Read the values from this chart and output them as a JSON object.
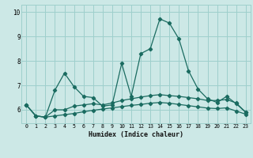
{
  "xlabel": "Humidex (Indice chaleur)",
  "ylabel": "",
  "background_color": "#cce8e6",
  "grid_color": "#9ecfcc",
  "line_color": "#1a6b60",
  "xmin": -0.5,
  "xmax": 23.5,
  "ymin": 5.45,
  "ymax": 10.3,
  "yticks": [
    6,
    7,
    8,
    9,
    10
  ],
  "xticks": [
    0,
    1,
    2,
    3,
    4,
    5,
    6,
    7,
    8,
    9,
    10,
    11,
    12,
    13,
    14,
    15,
    16,
    17,
    18,
    19,
    20,
    21,
    22,
    23
  ],
  "line1_x": [
    0,
    1,
    2,
    3,
    4,
    5,
    6,
    7,
    8,
    9,
    10,
    11,
    12,
    13,
    14,
    15,
    16,
    17,
    18,
    19,
    20,
    21,
    22,
    23
  ],
  "line1_y": [
    6.2,
    5.75,
    5.7,
    6.8,
    7.5,
    6.95,
    6.55,
    6.5,
    6.15,
    6.2,
    7.9,
    6.55,
    8.3,
    8.5,
    9.72,
    9.55,
    8.9,
    7.6,
    6.85,
    6.45,
    6.3,
    6.55,
    6.25,
    5.9
  ],
  "line2_x": [
    0,
    1,
    2,
    3,
    4,
    5,
    6,
    7,
    8,
    9,
    10,
    11,
    12,
    13,
    14,
    15,
    16,
    17,
    18,
    19,
    20,
    21,
    22,
    23
  ],
  "line2_y": [
    6.2,
    5.75,
    5.7,
    6.0,
    6.0,
    6.15,
    6.2,
    6.25,
    6.2,
    6.28,
    6.38,
    6.45,
    6.52,
    6.58,
    6.62,
    6.58,
    6.55,
    6.5,
    6.45,
    6.38,
    6.38,
    6.42,
    6.28,
    5.9
  ],
  "line3_x": [
    0,
    1,
    2,
    3,
    4,
    5,
    6,
    7,
    8,
    9,
    10,
    11,
    12,
    13,
    14,
    15,
    16,
    17,
    18,
    19,
    20,
    21,
    22,
    23
  ],
  "line3_y": [
    6.2,
    5.75,
    5.7,
    5.75,
    5.8,
    5.85,
    5.92,
    5.98,
    6.03,
    6.08,
    6.13,
    6.18,
    6.22,
    6.27,
    6.3,
    6.27,
    6.22,
    6.17,
    6.12,
    6.07,
    6.05,
    6.08,
    5.95,
    5.82
  ]
}
